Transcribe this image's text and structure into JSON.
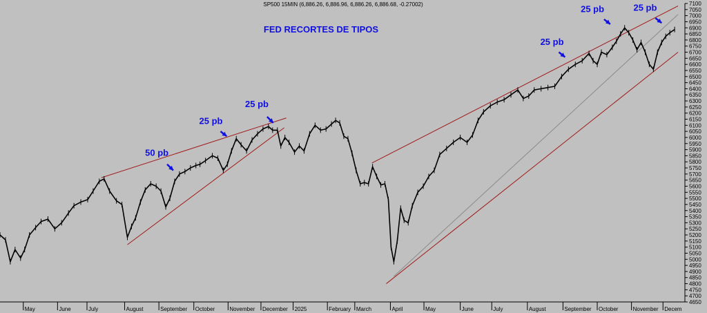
{
  "colors": {
    "background": "#c0c0c0",
    "price": "#000000",
    "trendline": "#a01818",
    "guide": "#8a8a8a",
    "annotation": "#1010e0"
  },
  "chart_data": {
    "type": "line",
    "header": "SP500 15MIN (6,886.26, 6,886.96, 6,886.26, 6,886.68, -0.27002)",
    "title": "FED RECORTES DE TIPOS",
    "ylim": [
      4650,
      7100
    ],
    "y_ticks": [
      4650,
      4700,
      4750,
      4800,
      4850,
      4900,
      4950,
      5000,
      5050,
      5100,
      5150,
      5200,
      5250,
      5300,
      5350,
      5400,
      5450,
      5500,
      5550,
      5600,
      5650,
      5700,
      5750,
      5800,
      5850,
      5900,
      5950,
      6000,
      6050,
      6100,
      6150,
      6200,
      6250,
      6300,
      6350,
      6400,
      6450,
      6500,
      6550,
      6600,
      6650,
      6700,
      6750,
      6800,
      6850,
      6900,
      6950,
      7000,
      7050,
      7100
    ],
    "x_axis_months": [
      {
        "label": "May",
        "x": 0.034
      },
      {
        "label": "June",
        "x": 0.084
      },
      {
        "label": "July",
        "x": 0.127
      },
      {
        "label": "August",
        "x": 0.182
      },
      {
        "label": "September",
        "x": 0.232
      },
      {
        "label": "October",
        "x": 0.283
      },
      {
        "label": "November",
        "x": 0.333
      },
      {
        "label": "December",
        "x": 0.381
      },
      {
        "label": "2025",
        "x": 0.428
      },
      {
        "label": "February",
        "x": 0.478
      },
      {
        "label": "March",
        "x": 0.518
      },
      {
        "label": "April",
        "x": 0.57
      },
      {
        "label": "May",
        "x": 0.619
      },
      {
        "label": "June",
        "x": 0.672
      },
      {
        "label": "July",
        "x": 0.718
      },
      {
        "label": "August",
        "x": 0.77
      },
      {
        "label": "September",
        "x": 0.822
      },
      {
        "label": "October",
        "x": 0.872
      },
      {
        "label": "November",
        "x": 0.922
      },
      {
        "label": "Decem",
        "x": 0.968
      }
    ],
    "series": [
      {
        "points": [
          [
            0.0,
            5200
          ],
          [
            0.008,
            5160
          ],
          [
            0.015,
            4980
          ],
          [
            0.022,
            5080
          ],
          [
            0.03,
            5010
          ],
          [
            0.036,
            5080
          ],
          [
            0.043,
            5200
          ],
          [
            0.052,
            5260
          ],
          [
            0.06,
            5310
          ],
          [
            0.07,
            5330
          ],
          [
            0.08,
            5250
          ],
          [
            0.09,
            5300
          ],
          [
            0.1,
            5380
          ],
          [
            0.108,
            5440
          ],
          [
            0.118,
            5470
          ],
          [
            0.128,
            5490
          ],
          [
            0.136,
            5560
          ],
          [
            0.145,
            5640
          ],
          [
            0.152,
            5660
          ],
          [
            0.16,
            5560
          ],
          [
            0.17,
            5480
          ],
          [
            0.178,
            5450
          ],
          [
            0.186,
            5180
          ],
          [
            0.192,
            5270
          ],
          [
            0.198,
            5340
          ],
          [
            0.205,
            5470
          ],
          [
            0.212,
            5570
          ],
          [
            0.22,
            5620
          ],
          [
            0.228,
            5600
          ],
          [
            0.235,
            5560
          ],
          [
            0.242,
            5430
          ],
          [
            0.248,
            5500
          ],
          [
            0.255,
            5640
          ],
          [
            0.262,
            5700
          ],
          [
            0.27,
            5720
          ],
          [
            0.278,
            5750
          ],
          [
            0.286,
            5770
          ],
          [
            0.292,
            5780
          ],
          [
            0.3,
            5810
          ],
          [
            0.31,
            5850
          ],
          [
            0.318,
            5830
          ],
          [
            0.326,
            5730
          ],
          [
            0.332,
            5780
          ],
          [
            0.338,
            5890
          ],
          [
            0.345,
            5990
          ],
          [
            0.352,
            5940
          ],
          [
            0.36,
            5890
          ],
          [
            0.368,
            5980
          ],
          [
            0.376,
            6030
          ],
          [
            0.384,
            6070
          ],
          [
            0.392,
            6090
          ],
          [
            0.398,
            6060
          ],
          [
            0.405,
            6060
          ],
          [
            0.41,
            5930
          ],
          [
            0.416,
            6000
          ],
          [
            0.422,
            5960
          ],
          [
            0.43,
            5880
          ],
          [
            0.437,
            5930
          ],
          [
            0.444,
            5890
          ],
          [
            0.452,
            6030
          ],
          [
            0.46,
            6100
          ],
          [
            0.468,
            6060
          ],
          [
            0.476,
            6070
          ],
          [
            0.484,
            6110
          ],
          [
            0.49,
            6140
          ],
          [
            0.496,
            6120
          ],
          [
            0.502,
            6010
          ],
          [
            0.508,
            5990
          ],
          [
            0.514,
            5870
          ],
          [
            0.52,
            5730
          ],
          [
            0.526,
            5620
          ],
          [
            0.532,
            5630
          ],
          [
            0.538,
            5620
          ],
          [
            0.544,
            5760
          ],
          [
            0.55,
            5680
          ],
          [
            0.556,
            5610
          ],
          [
            0.562,
            5620
          ],
          [
            0.567,
            5490
          ],
          [
            0.571,
            5100
          ],
          [
            0.575,
            4980
          ],
          [
            0.58,
            5150
          ],
          [
            0.585,
            5420
          ],
          [
            0.59,
            5320
          ],
          [
            0.596,
            5300
          ],
          [
            0.602,
            5440
          ],
          [
            0.61,
            5550
          ],
          [
            0.618,
            5600
          ],
          [
            0.626,
            5680
          ],
          [
            0.634,
            5730
          ],
          [
            0.642,
            5860
          ],
          [
            0.652,
            5910
          ],
          [
            0.662,
            5960
          ],
          [
            0.672,
            6000
          ],
          [
            0.682,
            5960
          ],
          [
            0.69,
            6020
          ],
          [
            0.698,
            6140
          ],
          [
            0.706,
            6210
          ],
          [
            0.716,
            6260
          ],
          [
            0.726,
            6290
          ],
          [
            0.736,
            6310
          ],
          [
            0.746,
            6350
          ],
          [
            0.756,
            6390
          ],
          [
            0.764,
            6320
          ],
          [
            0.772,
            6340
          ],
          [
            0.78,
            6390
          ],
          [
            0.79,
            6400
          ],
          [
            0.8,
            6410
          ],
          [
            0.81,
            6420
          ],
          [
            0.82,
            6500
          ],
          [
            0.83,
            6560
          ],
          [
            0.84,
            6600
          ],
          [
            0.85,
            6630
          ],
          [
            0.86,
            6690
          ],
          [
            0.866,
            6630
          ],
          [
            0.872,
            6600
          ],
          [
            0.878,
            6700
          ],
          [
            0.886,
            6680
          ],
          [
            0.894,
            6740
          ],
          [
            0.9,
            6790
          ],
          [
            0.906,
            6850
          ],
          [
            0.912,
            6900
          ],
          [
            0.918,
            6860
          ],
          [
            0.924,
            6800
          ],
          [
            0.93,
            6720
          ],
          [
            0.936,
            6780
          ],
          [
            0.942,
            6700
          ],
          [
            0.948,
            6600
          ],
          [
            0.954,
            6560
          ],
          [
            0.96,
            6700
          ],
          [
            0.966,
            6780
          ],
          [
            0.972,
            6830
          ],
          [
            0.978,
            6860
          ],
          [
            0.985,
            6886
          ]
        ]
      }
    ],
    "trendlines": [
      {
        "from": [
          0.148,
          5670
        ],
        "to": [
          0.418,
          6160
        ],
        "kind": "resistance"
      },
      {
        "from": [
          0.186,
          5120
        ],
        "to": [
          0.415,
          6080
        ],
        "kind": "support"
      },
      {
        "from": [
          0.543,
          5790
        ],
        "to": [
          0.99,
          7080
        ],
        "kind": "resistance"
      },
      {
        "from": [
          0.564,
          4800
        ],
        "to": [
          0.99,
          6700
        ],
        "kind": "support"
      }
    ],
    "guides": [
      {
        "from": [
          0.575,
          4860
        ],
        "to": [
          0.99,
          7010
        ]
      }
    ],
    "annotations": [
      {
        "label": "50 pb",
        "at": [
          0.229,
          5850
        ],
        "arrow_from": [
          0.244,
          5780
        ],
        "arrow_to": [
          0.253,
          5730
        ]
      },
      {
        "label": "25 pb",
        "at": [
          0.308,
          6110
        ],
        "arrow_from": [
          0.322,
          6050
        ],
        "arrow_to": [
          0.331,
          6010
        ]
      },
      {
        "label": "25 pb",
        "at": [
          0.375,
          6250
        ],
        "arrow_from": [
          0.39,
          6170
        ],
        "arrow_to": [
          0.399,
          6120
        ]
      },
      {
        "label": "25 pb",
        "at": [
          0.806,
          6760
        ],
        "arrow_from": [
          0.816,
          6700
        ],
        "arrow_to": [
          0.825,
          6660
        ]
      },
      {
        "label": "25 pb",
        "at": [
          0.865,
          7030
        ],
        "arrow_from": [
          0.882,
          6970
        ],
        "arrow_to": [
          0.891,
          6930
        ]
      },
      {
        "label": "25 pb",
        "at": [
          0.942,
          7040
        ],
        "arrow_from": [
          0.957,
          6980
        ],
        "arrow_to": [
          0.966,
          6940
        ]
      }
    ]
  }
}
